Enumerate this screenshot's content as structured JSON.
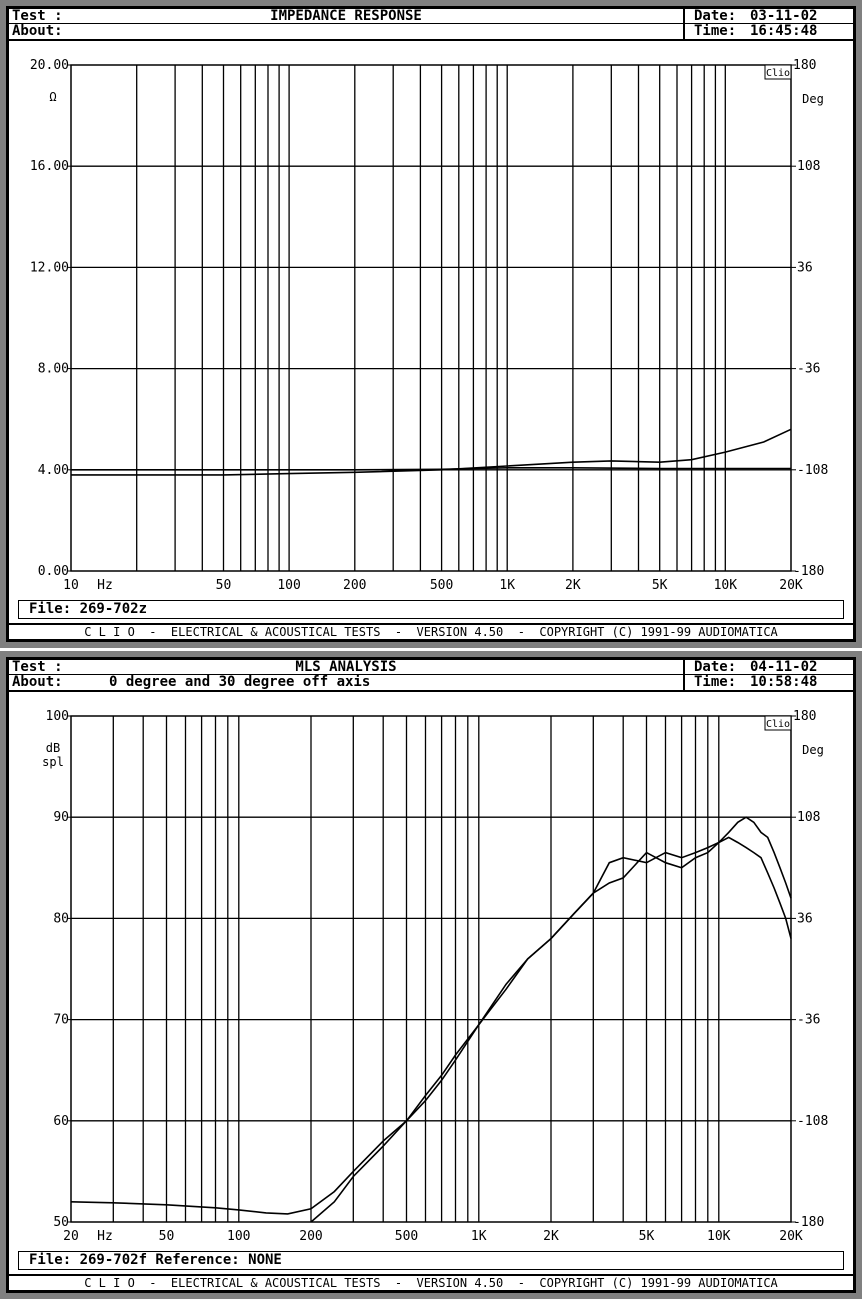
{
  "panels": [
    {
      "header": {
        "test_label": "Test :",
        "title": "IMPEDANCE RESPONSE",
        "about_label": "About:",
        "about_text": "",
        "date_label": "Date:",
        "date_value": "03-11-02",
        "time_label": "Time:",
        "time_value": "16:45:48"
      },
      "file_line": "File: 269-702z",
      "footer": "C L I O  -  ELECTRICAL & ACOUSTICAL TESTS  -  VERSION 4.50  -  COPYRIGHT (C) 1991-99 AUDIOMATICA"
    },
    {
      "header": {
        "test_label": "Test :",
        "title": "MLS ANALYSIS",
        "about_label": "About:",
        "about_text": "0 degree and 30 degree off axis",
        "date_label": "Date:",
        "date_value": "04-11-02",
        "time_label": "Time:",
        "time_value": "10:58:48"
      },
      "file_line": "File: 269-702f Reference: NONE",
      "footer": "C L I O  -  ELECTRICAL & ACOUSTICAL TESTS  -  VERSION 4.50  -  COPYRIGHT (C) 1991-99 AUDIOMATICA"
    }
  ],
  "chart_data": [
    {
      "type": "line",
      "title": "IMPEDANCE RESPONSE",
      "x_scale": "log",
      "xlim": [
        10,
        20000
      ],
      "x_unit_label": "Hz",
      "x_tick_labels": [
        {
          "v": 10,
          "t": "10"
        },
        {
          "v": 50,
          "t": "50"
        },
        {
          "v": 100,
          "t": "100"
        },
        {
          "v": 200,
          "t": "200"
        },
        {
          "v": 500,
          "t": "500"
        },
        {
          "v": 1000,
          "t": "1K"
        },
        {
          "v": 2000,
          "t": "2K"
        },
        {
          "v": 5000,
          "t": "5K"
        },
        {
          "v": 10000,
          "t": "10K"
        },
        {
          "v": 20000,
          "t": "20K"
        }
      ],
      "ylim": [
        0,
        20
      ],
      "y_ticks": [
        0,
        4,
        8,
        12,
        16,
        20
      ],
      "y_tick_labels": [
        "0.00",
        "4.00",
        "8.00",
        "12.00",
        "16.00",
        "20.00"
      ],
      "ylabel": "Ω",
      "y2lim": [
        -180,
        180
      ],
      "y2_ticks": [
        -180,
        -108,
        -36,
        36,
        108,
        180
      ],
      "y2_tick_labels": [
        "-180",
        "-108",
        "-36",
        "36",
        "108",
        "180"
      ],
      "y2label": "Deg",
      "brand": "Clio",
      "grid": true,
      "series": [
        {
          "x": [
            10,
            20,
            50,
            100,
            200,
            500,
            1000,
            2000,
            3000,
            5000,
            7000,
            10000,
            15000,
            20000
          ],
          "y": [
            3.8,
            3.8,
            3.8,
            3.85,
            3.9,
            4.0,
            4.15,
            4.3,
            4.35,
            4.3,
            4.4,
            4.7,
            5.1,
            5.6
          ]
        },
        {
          "x": [
            10,
            20,
            50,
            100,
            200,
            500,
            700,
            1000,
            2000,
            5000,
            10000,
            20000
          ],
          "y": [
            4.0,
            4.0,
            4.0,
            4.0,
            4.0,
            4.02,
            4.05,
            4.08,
            4.08,
            4.05,
            4.05,
            4.05
          ]
        }
      ]
    },
    {
      "type": "line",
      "title": "MLS ANALYSIS",
      "x_scale": "log",
      "xlim": [
        20,
        20000
      ],
      "x_unit_label": "Hz",
      "x_tick_labels": [
        {
          "v": 20,
          "t": "20"
        },
        {
          "v": 50,
          "t": "50"
        },
        {
          "v": 100,
          "t": "100"
        },
        {
          "v": 200,
          "t": "200"
        },
        {
          "v": 500,
          "t": "500"
        },
        {
          "v": 1000,
          "t": "1K"
        },
        {
          "v": 2000,
          "t": "2K"
        },
        {
          "v": 5000,
          "t": "5K"
        },
        {
          "v": 10000,
          "t": "10K"
        },
        {
          "v": 20000,
          "t": "20K"
        }
      ],
      "ylim": [
        50,
        100
      ],
      "y_ticks": [
        50,
        60,
        70,
        80,
        90,
        100
      ],
      "y_tick_labels": [
        "50",
        "60",
        "70",
        "80",
        "90",
        "100"
      ],
      "ylabel": "dB",
      "ylabel2": "spl",
      "y2lim": [
        -180,
        180
      ],
      "y2_ticks": [
        -180,
        -108,
        -36,
        36,
        108,
        180
      ],
      "y2_tick_labels": [
        "-180",
        "-108",
        "-36",
        "36",
        "108",
        "180"
      ],
      "y2label": "Deg",
      "brand": "Clio",
      "grid": true,
      "series": [
        {
          "x": [
            20,
            30,
            50,
            80,
            100,
            130,
            160,
            200,
            250,
            300,
            400,
            500,
            600,
            700,
            800,
            1000,
            1300,
            1600,
            2000,
            2500,
            3000,
            3500,
            4000,
            5000,
            6000,
            7000,
            8000,
            9000,
            10000,
            11000,
            12000,
            13000,
            14000,
            15000,
            16000,
            17000,
            18000,
            19000,
            20000
          ],
          "y": [
            52,
            51.9,
            51.7,
            51.4,
            51.2,
            50.9,
            50.8,
            51.3,
            53,
            55,
            58,
            60,
            62,
            64,
            66,
            69.5,
            73,
            76,
            78,
            80.5,
            82.5,
            85.5,
            86,
            85.5,
            86.5,
            86,
            86.5,
            87,
            87.5,
            88.5,
            89.5,
            90,
            89.5,
            88.5,
            88,
            86.5,
            85,
            83.5,
            82
          ]
        },
        {
          "x": [
            200,
            250,
            300,
            400,
            500,
            600,
            700,
            800,
            1000,
            1300,
            1600,
            2000,
            2500,
            3000,
            3500,
            4000,
            5000,
            6000,
            7000,
            8000,
            9000,
            10000,
            11000,
            12000,
            13000,
            14000,
            15000,
            16000,
            17000,
            18000,
            19000,
            20000
          ],
          "y": [
            49.5,
            52,
            54.5,
            57.5,
            60,
            62.5,
            64.5,
            66.5,
            69.5,
            73.5,
            76,
            78,
            80.5,
            82.5,
            83.5,
            84,
            86.5,
            85.5,
            85,
            86,
            86.5,
            87.5,
            88,
            87.5,
            87,
            86.5,
            86,
            84.5,
            83,
            81.5,
            80,
            78
          ]
        }
      ]
    }
  ]
}
